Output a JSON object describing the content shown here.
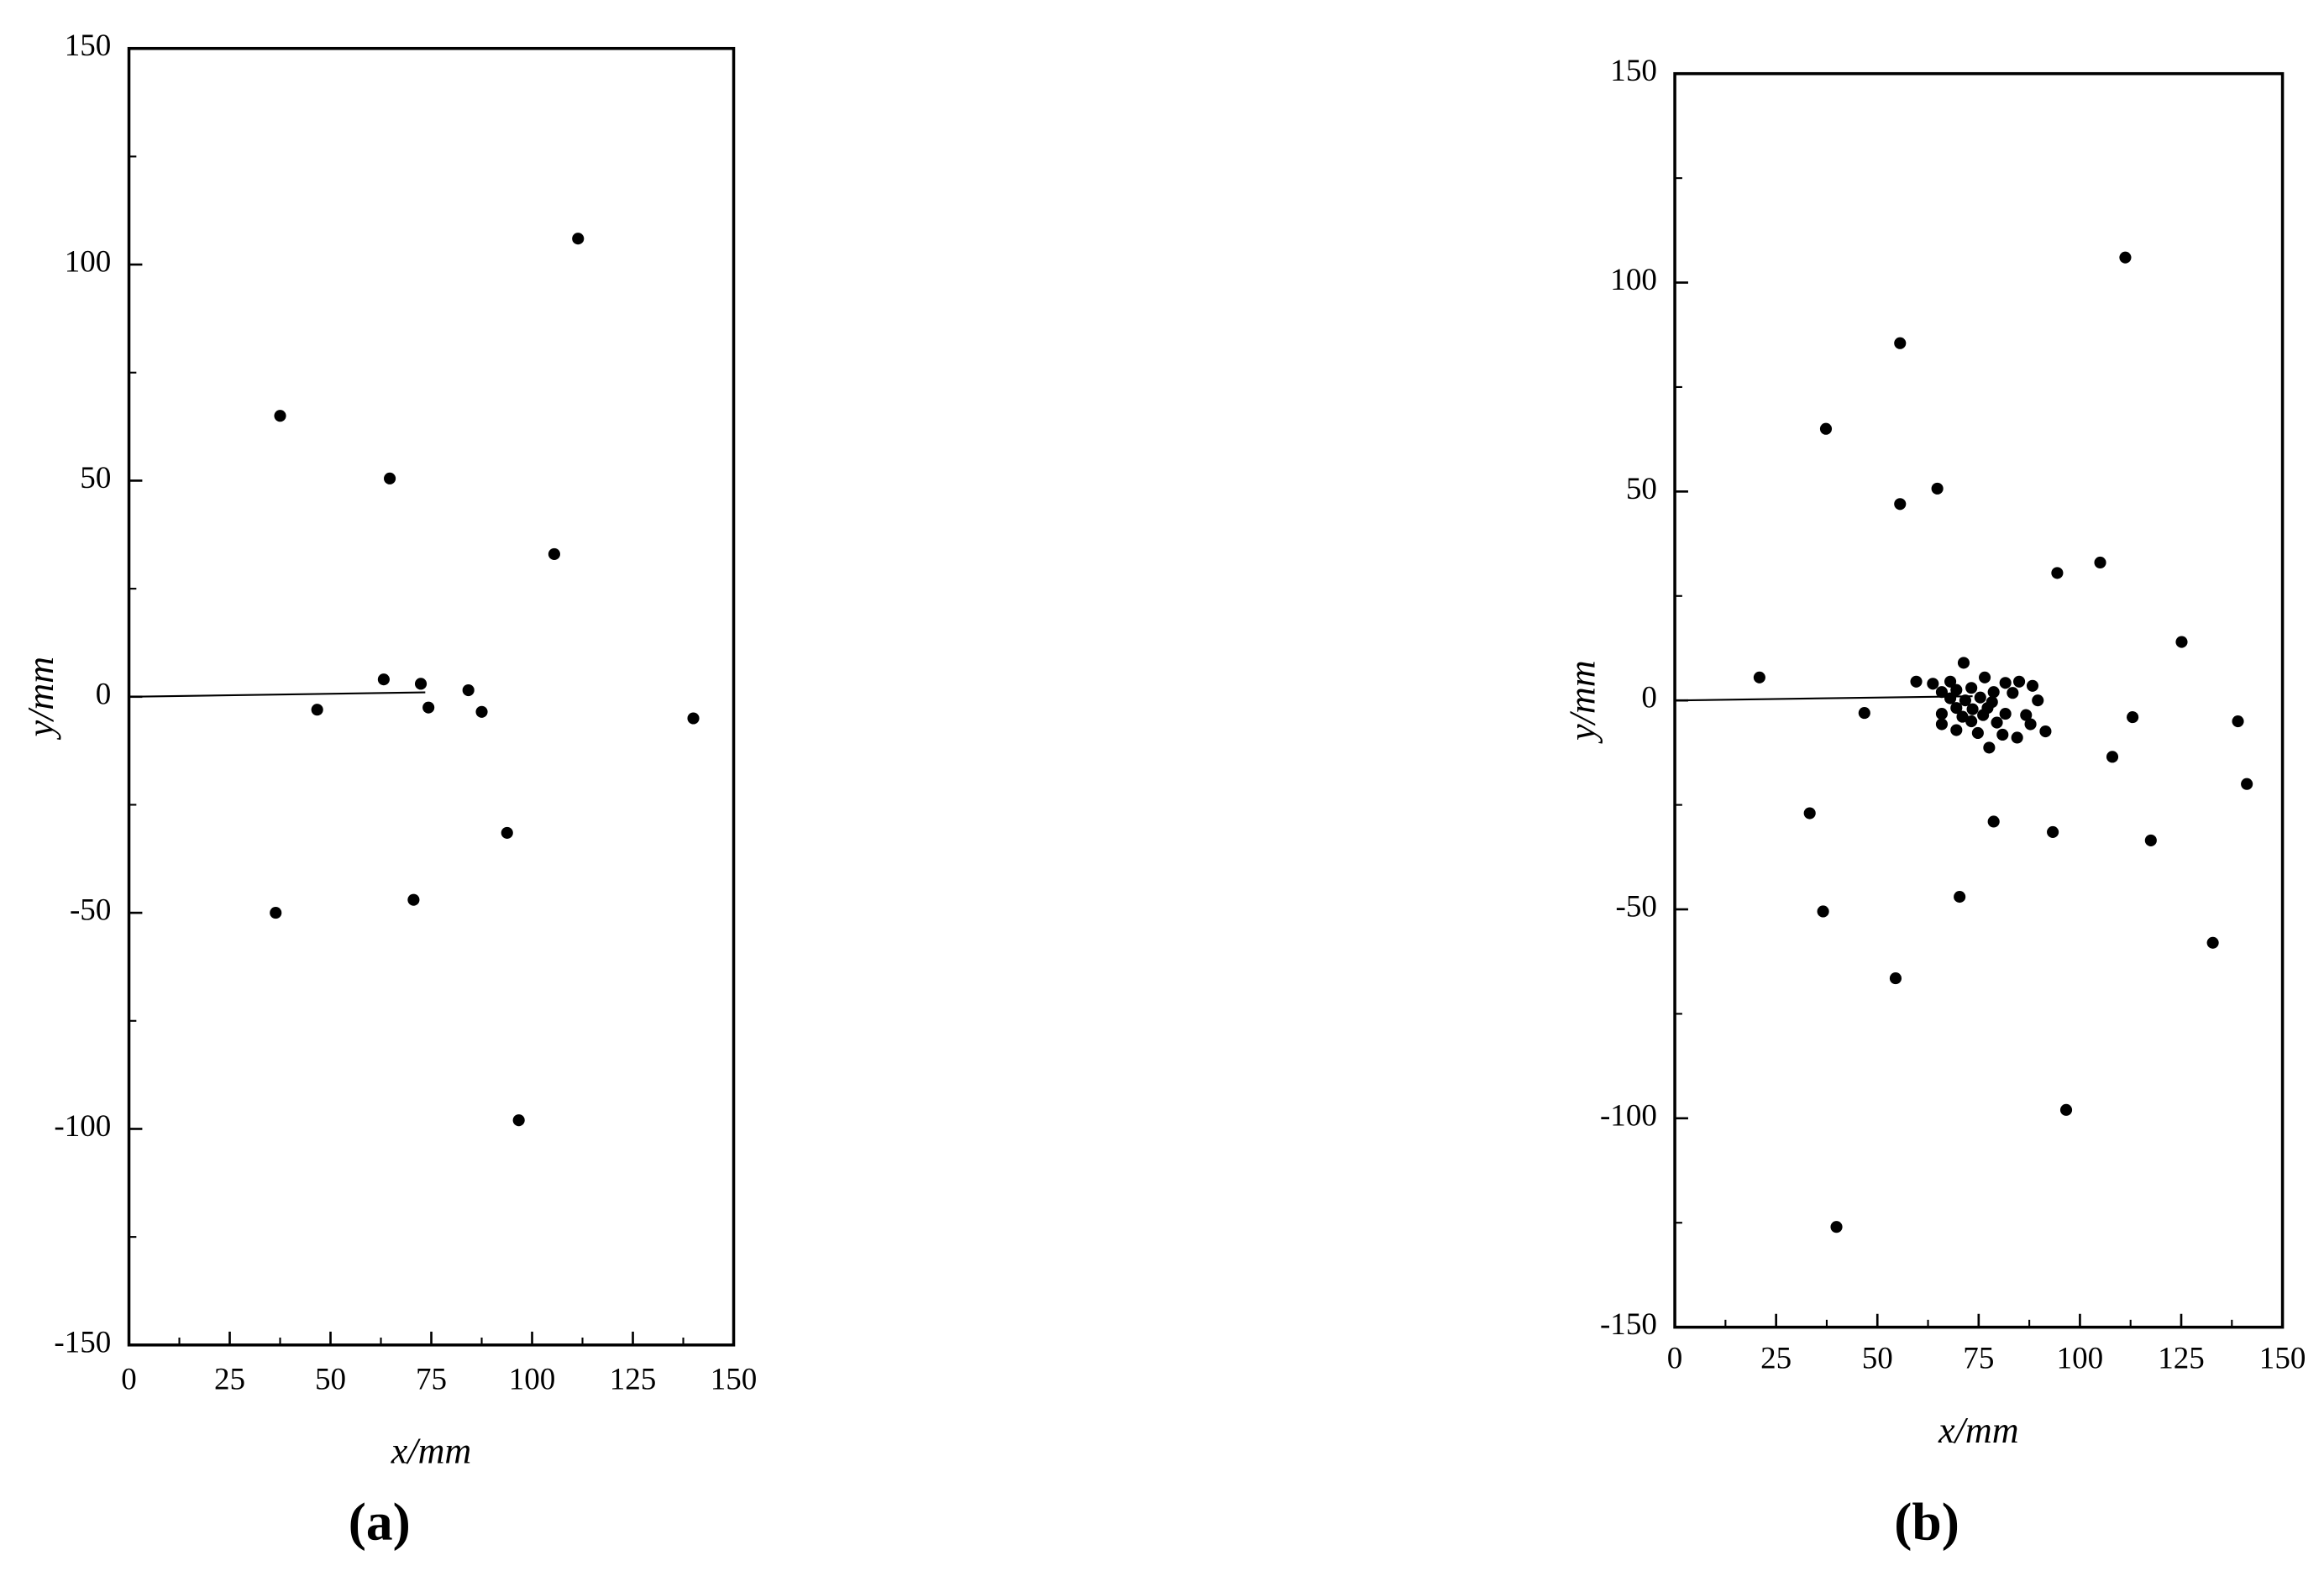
{
  "chart_data": [
    {
      "type": "scatter",
      "caption": "(a)",
      "x_label": "x/mm",
      "y_label": "y/mm",
      "color": "#000000",
      "x": [
        37.5,
        64.7,
        111.4,
        105.5,
        63.2,
        72.4,
        84.2,
        46.7,
        74.3,
        87.5,
        140,
        93.8,
        36.4,
        70.6,
        96.7
      ],
      "y": [
        65,
        50.5,
        106,
        33,
        4,
        3,
        1.5,
        -3,
        -2.5,
        -3.5,
        -5,
        -31.5,
        -50,
        -47,
        -98
      ],
      "segment": {
        "x": [
          0,
          73.5
        ],
        "y": [
          0,
          1
        ]
      },
      "xlim": [
        0,
        150
      ],
      "ylim": [
        -150,
        150
      ],
      "xticks": [
        0,
        25,
        50,
        75,
        100,
        125,
        150
      ],
      "yticks": [
        -150,
        -100,
        -50,
        0,
        50,
        100,
        150
      ],
      "xminor": [
        12.5,
        37.5,
        62.5,
        87.5,
        112.5,
        137.5
      ],
      "yminor": [
        -125,
        -75,
        -25,
        25,
        75,
        125
      ]
    },
    {
      "type": "scatter",
      "caption": "(b)",
      "x_label": "x/mm",
      "y_label": "y/mm",
      "color": "#000000",
      "x": [
        111.2,
        55.6,
        37.3,
        64.8,
        55.6,
        105,
        94.4,
        125.1,
        20.9,
        46.8,
        113,
        139,
        108,
        141.2,
        33.3,
        78.7,
        93.3,
        117.5,
        36.6,
        70.3,
        132.8,
        54.5,
        96.6,
        39.9,
        71.3,
        59.6,
        63.7,
        68,
        76.5,
        81.6,
        85,
        88.3,
        65.9,
        69.5,
        73.2,
        78.7,
        83.4,
        68,
        71.7,
        75.4,
        78.3,
        89.6,
        69.5,
        73.5,
        77.2,
        65.9,
        71,
        76.1,
        81.6,
        86.7,
        65.9,
        73.2,
        79.5,
        87.8,
        69.5,
        74.8,
        80.9,
        84.5,
        91.5,
        77.6
      ],
      "y": [
        106,
        85.5,
        65,
        50.7,
        47,
        33,
        30.5,
        14,
        5.5,
        -3,
        -4,
        -5,
        -13.5,
        -20,
        -27,
        -29,
        -31.5,
        -33.5,
        -50.5,
        -47,
        -58,
        -66.5,
        -98,
        -126,
        9,
        4.5,
        4,
        4.5,
        5.5,
        4.2,
        4.5,
        3.5,
        2,
        2.5,
        3,
        2,
        1.8,
        0.5,
        0,
        0.7,
        -0.4,
        0,
        -1.8,
        -2.1,
        -1.8,
        -3.2,
        -3.9,
        -3.5,
        -3.2,
        -3.5,
        -5.7,
        -5,
        -5.3,
        -5.7,
        -7.1,
        -7.8,
        -8.2,
        -8.9,
        -7.4,
        -11.3
      ],
      "segment": {
        "x": [
          0,
          73.5
        ],
        "y": [
          0,
          1
        ]
      },
      "xlim": [
        0,
        150
      ],
      "ylim": [
        -150,
        150
      ],
      "xticks": [
        0,
        25,
        50,
        75,
        100,
        125,
        150
      ],
      "yticks": [
        -150,
        -100,
        -50,
        0,
        50,
        100,
        150
      ],
      "xminor": [
        12.5,
        37.5,
        62.5,
        87.5,
        112.5,
        137.5
      ],
      "yminor": [
        -125,
        -75,
        -25,
        25,
        75,
        125
      ]
    }
  ]
}
